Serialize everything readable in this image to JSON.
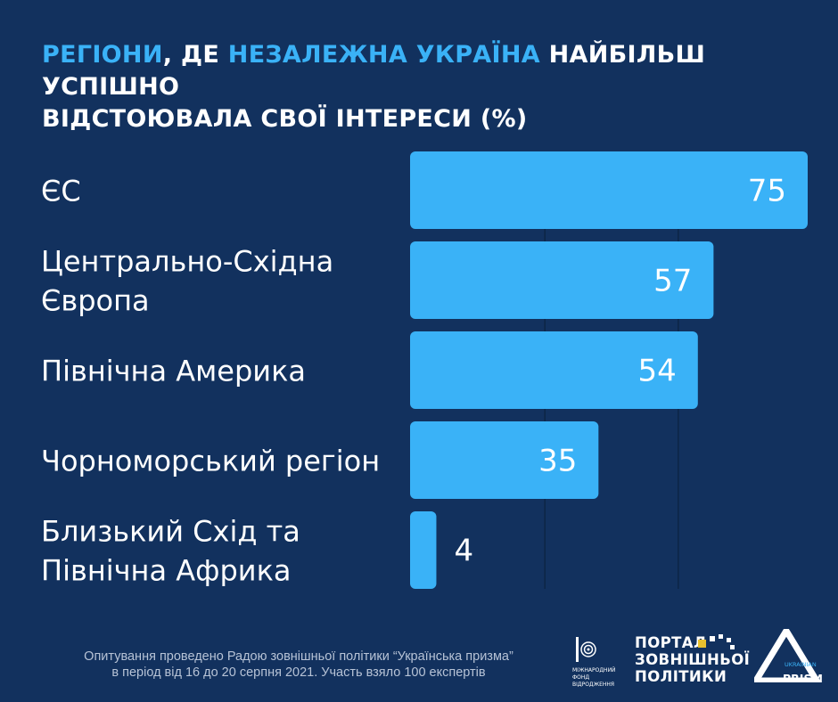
{
  "title": {
    "part1": "Регіони",
    "part2": ", де ",
    "part3": "незалежна Україна",
    "part4": " найбільш успішно",
    "line2": "відстоювала свої інтереси (%)"
  },
  "chart_data": {
    "type": "bar",
    "orientation": "horizontal",
    "title": "Регіони, де незалежна Україна найбільш успішно відстоювала свої інтереси (%)",
    "categories": [
      [
        "ЄС"
      ],
      [
        "Центрально-Східна",
        "Європа"
      ],
      [
        "Північна Америка"
      ],
      [
        "Чорноморський регіон"
      ],
      [
        "Близький Схід та",
        "Північна Африка"
      ]
    ],
    "values": [
      75,
      57,
      54,
      35,
      4
    ],
    "xlim": [
      0,
      75
    ],
    "grid": true,
    "bar_color": "#3ab2f7"
  },
  "footnote": {
    "line1": "Опитування проведено Радою зовнішньої політики “Українська призма”",
    "line2": "в період від 16 до 20 серпня 2021. Участь взяло 100 експертів"
  },
  "logos": {
    "irf": [
      "МІЖНАРОДНИЙ",
      "ФОНД",
      "ВІДРОДЖЕННЯ"
    ],
    "portal": [
      "ПОРТАЛ",
      "ЗОВНІШНЬОЇ",
      "ПОЛІТИКИ"
    ],
    "prism_small": "UKRAINIAN",
    "prism_big": "PRISM"
  },
  "colors": {
    "background": "#12315e",
    "accent": "#3ab2f7",
    "text": "#ffffff",
    "grid": "#0d2546"
  }
}
